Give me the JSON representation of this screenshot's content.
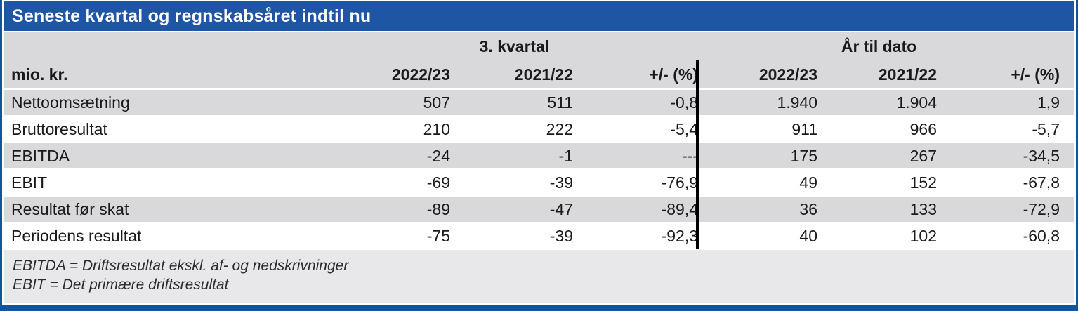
{
  "header": {
    "title": "Seneste kvartal og regnskabsåret indtil nu"
  },
  "chart_data": {
    "type": "table",
    "title": "Seneste kvartal og regnskabsåret indtil nu",
    "unit_label": "mio. kr.",
    "column_groups": [
      {
        "label": "3. kvartal",
        "span": 3
      },
      {
        "label": "År til dato",
        "span": 3
      }
    ],
    "column_headers": [
      "2022/23",
      "2021/22",
      "+/- (%)",
      "2022/23",
      "2021/22",
      "+/- (%)"
    ],
    "rows": [
      {
        "label": "Nettoomsætning",
        "values": [
          "507",
          "511",
          "-0,8",
          "1.940",
          "1.904",
          "1,9"
        ]
      },
      {
        "label": "Bruttoresultat",
        "values": [
          "210",
          "222",
          "-5,4",
          "911",
          "966",
          "-5,7"
        ]
      },
      {
        "label": "EBITDA",
        "values": [
          "-24",
          "-1",
          "---",
          "175",
          "267",
          "-34,5"
        ]
      },
      {
        "label": "EBIT",
        "values": [
          "-69",
          "-39",
          "-76,9",
          "49",
          "152",
          "-67,8"
        ]
      },
      {
        "label": "Resultat før skat",
        "values": [
          "-89",
          "-47",
          "-89,4",
          "36",
          "133",
          "-72,9"
        ]
      },
      {
        "label": "Periodens resultat",
        "values": [
          "-75",
          "-39",
          "-92,3",
          "40",
          "102",
          "-60,8"
        ]
      }
    ]
  },
  "footnotes": [
    "EBITDA = Driftsresultat ekskl. af- og nedskrivninger",
    "EBIT = Det primære driftsresultat"
  ],
  "colors": {
    "title_bar_blue": "#1e55a5",
    "frame_blue": "#1155a0",
    "row_gray": "#d9d9dc",
    "footer_gray": "#e8e8ea",
    "divider_black": "#000000",
    "text": "#1a1a1a"
  }
}
